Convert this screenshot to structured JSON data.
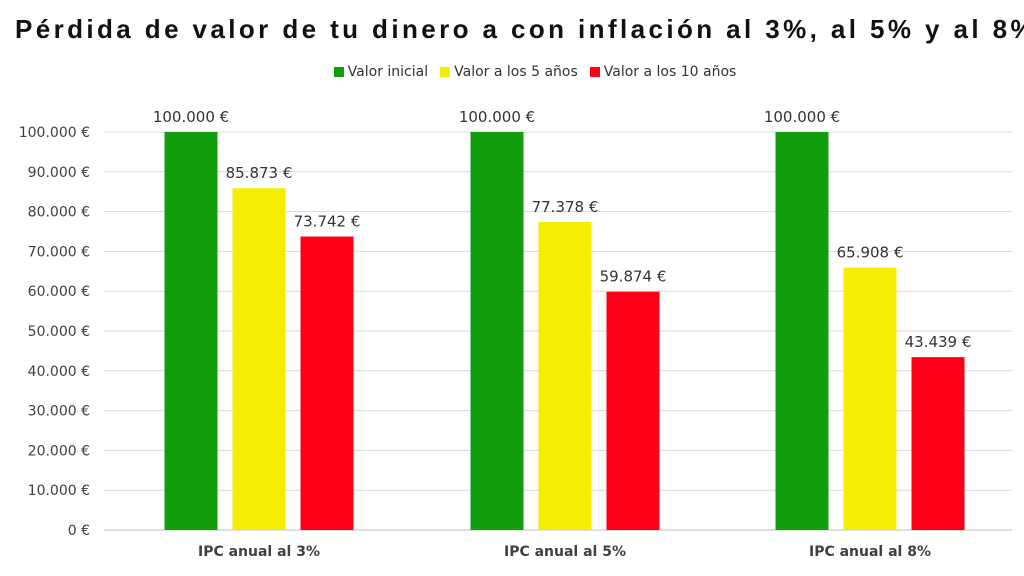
{
  "chart_data": {
    "type": "bar",
    "title": "Pérdida de valor de tu dinero a con inflación al 3%, al 5% y al 8%",
    "categories": [
      "IPC anual al 3%",
      "IPC anual al 5%",
      "IPC anual al 8%"
    ],
    "series": [
      {
        "name": "Valor inicial",
        "color": "#129e0c",
        "values": [
          100000,
          100000,
          100000
        ],
        "labels": [
          "100.000 €",
          "100.000 €",
          "100.000 €"
        ]
      },
      {
        "name": "Valor a los 5 años",
        "color": "#f5ee00",
        "values": [
          85873,
          77378,
          65908
        ],
        "labels": [
          "85.873 €",
          "77.378 €",
          "65.908 €"
        ]
      },
      {
        "name": "Valor a los 10 años",
        "color": "#ff0019",
        "values": [
          73742,
          59874,
          43439
        ],
        "labels": [
          "73.742 €",
          "59.874 €",
          "43.439 €"
        ]
      }
    ],
    "ylim": [
      0,
      100000
    ],
    "yticks": [
      0,
      10000,
      20000,
      30000,
      40000,
      50000,
      60000,
      70000,
      80000,
      90000,
      100000
    ],
    "ytick_labels": [
      "0 €",
      "10.000 €",
      "20.000 €",
      "30.000 €",
      "40.000 €",
      "50.000 €",
      "60.000 €",
      "70.000 €",
      "80.000 €",
      "90.000 €",
      "100.000 €"
    ],
    "xlabel": "",
    "ylabel": "",
    "grid": true,
    "legend_position": "top-center"
  }
}
